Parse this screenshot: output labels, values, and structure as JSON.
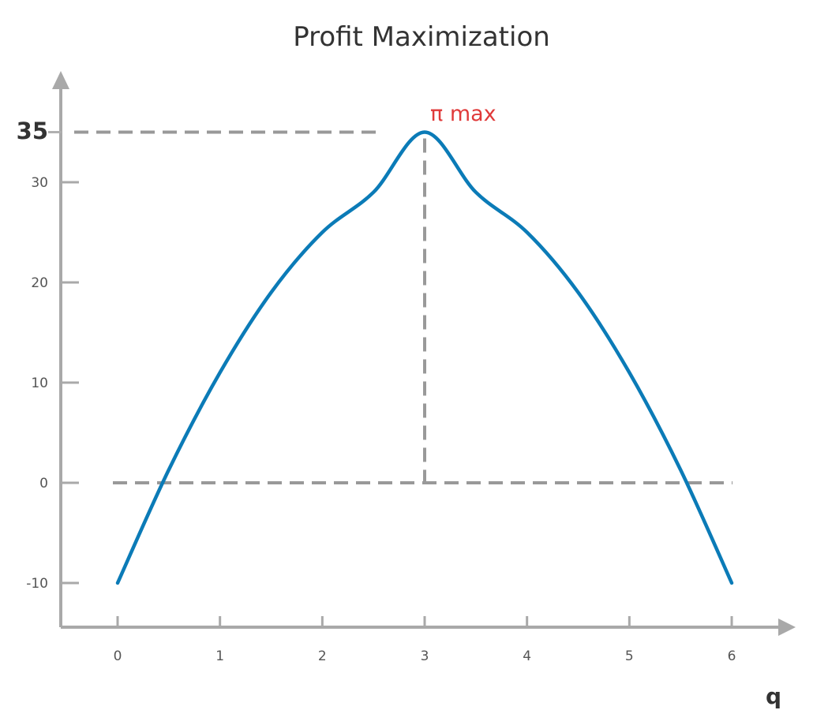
{
  "chart_data": {
    "type": "line",
    "title": "Profit Maximization",
    "xlabel": "q",
    "ylabel": "",
    "xlim": [
      -0.5,
      6.5
    ],
    "ylim": [
      -14,
      41
    ],
    "x_ticks": [
      "0",
      "1",
      "2",
      "3",
      "4",
      "5",
      "6"
    ],
    "y_ticks": [
      "-10",
      "0",
      "10",
      "20",
      "30"
    ],
    "highlighted_y_tick": "35",
    "grid": false,
    "series": [
      {
        "x": [
          0,
          0.5,
          1,
          1.5,
          2,
          2.5,
          3,
          3.5,
          4,
          4.5,
          5,
          5.5,
          6
        ],
        "values": [
          -10,
          1.3,
          11,
          19,
          25,
          29,
          35,
          29,
          25,
          19,
          11,
          1.3,
          -10
        ]
      }
    ],
    "maximum": {
      "x": 3,
      "y": 35
    },
    "annotation": "π max",
    "zero_line": 0,
    "colors": {
      "curve": "#0b7bb7",
      "axis": "#a9a9a9",
      "guide": "#999999",
      "annotation": "#e03a3a"
    }
  }
}
